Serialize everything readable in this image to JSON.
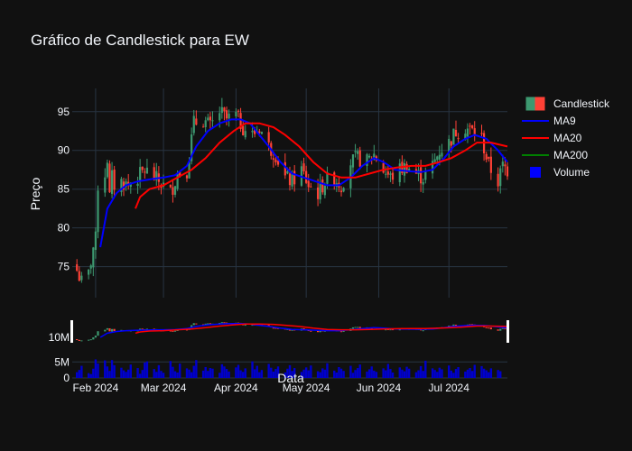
{
  "chart_data": {
    "type": "candlestick",
    "title": "Gráfico de Candlestick para EW",
    "xlabel": "Data",
    "ylabel": "Preço",
    "ylim": [
      71,
      98
    ],
    "yticks": [
      75,
      80,
      85,
      90,
      95
    ],
    "volume_ticks": [
      {
        "value": 0,
        "label": "0"
      },
      {
        "value": 5000000,
        "label": "5M"
      }
    ],
    "volume_ylim": [
      0,
      6500000
    ],
    "x_tick_labels": [
      "Feb 2024",
      "Mar 2024",
      "Apr 2024",
      "May 2024",
      "Jun 2024",
      "Jul 2024"
    ],
    "x_tick_dates": [
      "2024-02-01",
      "2024-03-01",
      "2024-04-01",
      "2024-05-01",
      "2024-06-01",
      "2024-07-01"
    ],
    "range_slider_label": "10M",
    "x_range": [
      "2024-01-22",
      "2024-07-26"
    ],
    "grid": true,
    "legend_position": "right",
    "legend": [
      {
        "name": "Candlestick",
        "kind": "candle"
      },
      {
        "name": "MA9",
        "kind": "line",
        "color": "#0000ff"
      },
      {
        "name": "MA20",
        "kind": "line",
        "color": "#ff0000"
      },
      {
        "name": "MA200",
        "kind": "line",
        "color": "#008000"
      },
      {
        "name": "Volume",
        "kind": "square",
        "color": "#0000ff"
      }
    ],
    "colors": {
      "increasing": "#3d9970",
      "decreasing": "#ff4136",
      "volume": "#0000cc"
    },
    "close_path": [
      [
        "2024-01-24",
        74.5
      ],
      [
        "2024-01-26",
        73.0
      ],
      [
        "2024-01-29",
        74.0
      ],
      [
        "2024-01-31",
        77.5
      ],
      [
        "2024-02-01",
        78.5
      ],
      [
        "2024-02-02",
        85.5
      ],
      [
        "2024-02-05",
        87.0
      ],
      [
        "2024-02-06",
        89.0
      ],
      [
        "2024-02-07",
        84.0
      ],
      [
        "2024-02-08",
        86.5
      ],
      [
        "2024-02-10",
        84.5
      ],
      [
        "2024-02-12",
        86.0
      ],
      [
        "2024-02-15",
        85.5
      ],
      [
        "2024-02-19",
        86.5
      ],
      [
        "2024-02-22",
        87.5
      ],
      [
        "2024-02-26",
        86.5
      ],
      [
        "2024-02-28",
        86.0
      ],
      [
        "2024-03-04",
        84.5
      ],
      [
        "2024-03-07",
        87.0
      ],
      [
        "2024-03-11",
        87.5
      ],
      [
        "2024-03-14",
        93.5
      ],
      [
        "2024-03-18",
        94.0
      ],
      [
        "2024-03-21",
        93.0
      ],
      [
        "2024-03-25",
        95.0
      ],
      [
        "2024-03-28",
        94.0
      ],
      [
        "2024-04-01",
        94.5
      ],
      [
        "2024-04-04",
        93.0
      ],
      [
        "2024-04-08",
        92.0
      ],
      [
        "2024-04-11",
        93.0
      ],
      [
        "2024-04-15",
        90.5
      ],
      [
        "2024-04-18",
        89.5
      ],
      [
        "2024-04-22",
        86.5
      ],
      [
        "2024-04-25",
        86.0
      ],
      [
        "2024-04-29",
        87.5
      ],
      [
        "2024-05-02",
        85.5
      ],
      [
        "2024-05-06",
        84.5
      ],
      [
        "2024-05-09",
        86.0
      ],
      [
        "2024-05-13",
        86.5
      ],
      [
        "2024-05-16",
        85.5
      ],
      [
        "2024-05-20",
        88.5
      ],
      [
        "2024-05-23",
        89.0
      ],
      [
        "2024-05-27",
        88.5
      ],
      [
        "2024-05-30",
        89.5
      ],
      [
        "2024-06-03",
        87.5
      ],
      [
        "2024-06-06",
        86.5
      ],
      [
        "2024-06-10",
        87.5
      ],
      [
        "2024-06-13",
        88.0
      ],
      [
        "2024-06-17",
        87.0
      ],
      [
        "2024-06-20",
        86.5
      ],
      [
        "2024-06-24",
        88.0
      ],
      [
        "2024-06-27",
        90.0
      ],
      [
        "2024-07-01",
        91.0
      ],
      [
        "2024-07-04",
        92.5
      ],
      [
        "2024-07-08",
        93.0
      ],
      [
        "2024-07-11",
        92.5
      ],
      [
        "2024-07-15",
        91.5
      ],
      [
        "2024-07-18",
        88.0
      ],
      [
        "2024-07-22",
        86.0
      ],
      [
        "2024-07-24",
        88.0
      ],
      [
        "2024-07-26",
        87.5
      ]
    ],
    "ma9": [
      [
        "2024-02-03",
        77.5
      ],
      [
        "2024-02-06",
        82.5
      ],
      [
        "2024-02-10",
        84.5
      ],
      [
        "2024-02-14",
        85.5
      ],
      [
        "2024-02-19",
        86.0
      ],
      [
        "2024-02-25",
        86.3
      ],
      [
        "2024-03-01",
        86.5
      ],
      [
        "2024-03-06",
        86.8
      ],
      [
        "2024-03-11",
        88.0
      ],
      [
        "2024-03-15",
        90.5
      ],
      [
        "2024-03-20",
        92.5
      ],
      [
        "2024-03-25",
        93.5
      ],
      [
        "2024-03-30",
        94.0
      ],
      [
        "2024-04-03",
        94.0
      ],
      [
        "2024-04-07",
        93.5
      ],
      [
        "2024-04-11",
        92.0
      ],
      [
        "2024-04-15",
        90.5
      ],
      [
        "2024-04-20",
        88.5
      ],
      [
        "2024-04-25",
        87.0
      ],
      [
        "2024-04-30",
        86.5
      ],
      [
        "2024-05-05",
        86.0
      ],
      [
        "2024-05-10",
        85.5
      ],
      [
        "2024-05-15",
        85.5
      ],
      [
        "2024-05-20",
        86.5
      ],
      [
        "2024-05-25",
        88.0
      ],
      [
        "2024-05-30",
        89.0
      ],
      [
        "2024-06-03",
        88.5
      ],
      [
        "2024-06-08",
        87.5
      ],
      [
        "2024-06-14",
        87.3
      ],
      [
        "2024-06-19",
        87.2
      ],
      [
        "2024-06-24",
        87.5
      ],
      [
        "2024-06-29",
        89.0
      ],
      [
        "2024-07-03",
        90.5
      ],
      [
        "2024-07-08",
        91.5
      ],
      [
        "2024-07-12",
        92.0
      ],
      [
        "2024-07-17",
        91.5
      ],
      [
        "2024-07-22",
        90.0
      ],
      [
        "2024-07-26",
        88.5
      ]
    ],
    "ma20": [
      [
        "2024-02-18",
        82.5
      ],
      [
        "2024-02-20",
        84.0
      ],
      [
        "2024-02-24",
        85.0
      ],
      [
        "2024-03-01",
        85.5
      ],
      [
        "2024-03-07",
        86.5
      ],
      [
        "2024-03-13",
        87.5
      ],
      [
        "2024-03-19",
        89.0
      ],
      [
        "2024-03-25",
        91.0
      ],
      [
        "2024-03-31",
        92.5
      ],
      [
        "2024-04-05",
        93.5
      ],
      [
        "2024-04-11",
        93.5
      ],
      [
        "2024-04-17",
        93.0
      ],
      [
        "2024-04-22",
        92.0
      ],
      [
        "2024-04-28",
        90.5
      ],
      [
        "2024-05-04",
        88.5
      ],
      [
        "2024-05-10",
        87.0
      ],
      [
        "2024-05-16",
        86.5
      ],
      [
        "2024-05-22",
        86.5
      ],
      [
        "2024-05-28",
        87.0
      ],
      [
        "2024-06-03",
        87.5
      ],
      [
        "2024-06-09",
        87.8
      ],
      [
        "2024-06-15",
        88.0
      ],
      [
        "2024-06-21",
        88.0
      ],
      [
        "2024-06-27",
        88.5
      ],
      [
        "2024-07-02",
        89.0
      ],
      [
        "2024-07-08",
        90.0
      ],
      [
        "2024-07-13",
        91.0
      ],
      [
        "2024-07-19",
        91.0
      ],
      [
        "2024-07-26",
        90.5
      ]
    ],
    "volume": [
      1.8,
      2.5,
      3.8,
      1.5,
      1.2,
      2.9,
      5.8,
      4.5,
      5.5,
      3.6,
      2.2,
      5.6,
      4.0,
      3.2,
      2.4,
      1.9,
      2.6,
      4.2,
      3.1,
      1.3,
      2.5,
      4.8,
      5.2,
      2.8,
      1.9,
      4.0,
      2.2,
      1.6,
      5.3,
      3.5,
      2.1,
      1.7,
      4.5,
      3.0,
      2.6,
      1.8,
      3.8,
      5.6,
      2.3,
      3.4,
      2.2,
      3.1,
      2.9,
      1.6,
      4.3,
      3.6,
      2.8,
      2.0,
      3.3,
      4.1,
      2.4,
      1.9,
      3.0,
      5.2,
      2.7,
      3.8,
      1.8,
      2.5,
      4.4,
      3.2,
      2.0,
      2.8,
      3.6,
      1.7,
      2.9,
      4.0,
      2.2,
      3.1,
      1.9,
      2.6,
      3.3,
      2.4,
      3.9,
      2.1,
      1.8,
      3.0,
      2.6,
      4.6,
      2.3,
      1.7,
      3.4,
      2.9,
      2.2,
      3.8,
      1.6,
      2.5,
      3.1,
      4.2,
      2.0,
      2.7,
      3.6,
      2.3,
      1.9,
      3.0,
      2.4,
      4.4,
      2.8,
      1.7,
      3.3,
      2.6,
      2.1,
      3.5,
      2.9,
      1.8,
      2.4,
      3.7,
      2.2,
      5.4,
      3.0,
      2.5,
      1.9,
      3.2,
      2.7,
      3.9,
      2.3,
      1.6,
      2.8,
      3.4,
      2.0,
      2.6,
      3.1,
      2.2,
      4.1,
      3.7,
      2.9,
      2.4,
      1.8,
      3.0,
      2.5,
      2.1
    ]
  }
}
